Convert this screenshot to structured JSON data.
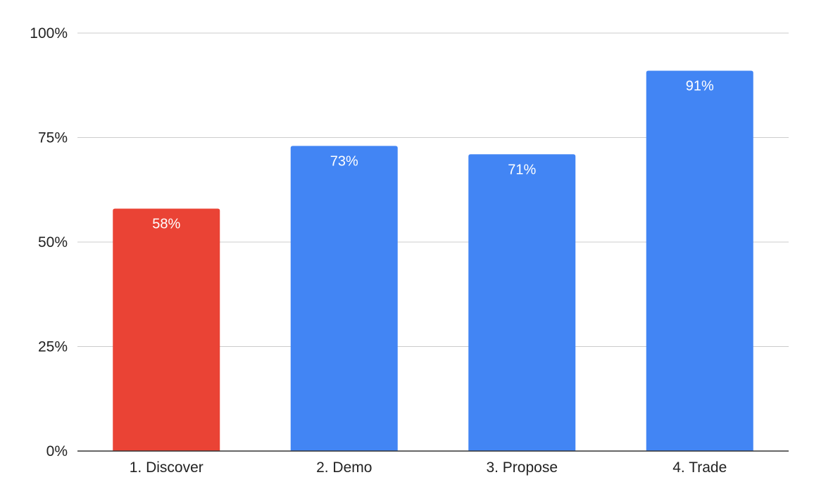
{
  "chart_data": {
    "type": "bar",
    "title": "",
    "xlabel": "",
    "ylabel": "",
    "categories": [
      "1. Discover",
      "2. Demo",
      "3. Propose",
      "4. Trade"
    ],
    "values": [
      58,
      73,
      71,
      91
    ],
    "data_labels": [
      "58%",
      "73%",
      "71%",
      "91%"
    ],
    "bar_colors": [
      "#EA4335",
      "#4285F4",
      "#4285F4",
      "#4285F4"
    ],
    "ylim": [
      0,
      100
    ],
    "yticks": [
      0,
      25,
      50,
      75,
      100
    ],
    "ytick_labels": [
      "0%",
      "25%",
      "50%",
      "75%",
      "100%"
    ],
    "grid": true,
    "legend": "none",
    "colors": {
      "gridline": "#cccccc",
      "axis": "#333333",
      "label_text": "#222222",
      "data_label_text": "#ffffff"
    }
  }
}
